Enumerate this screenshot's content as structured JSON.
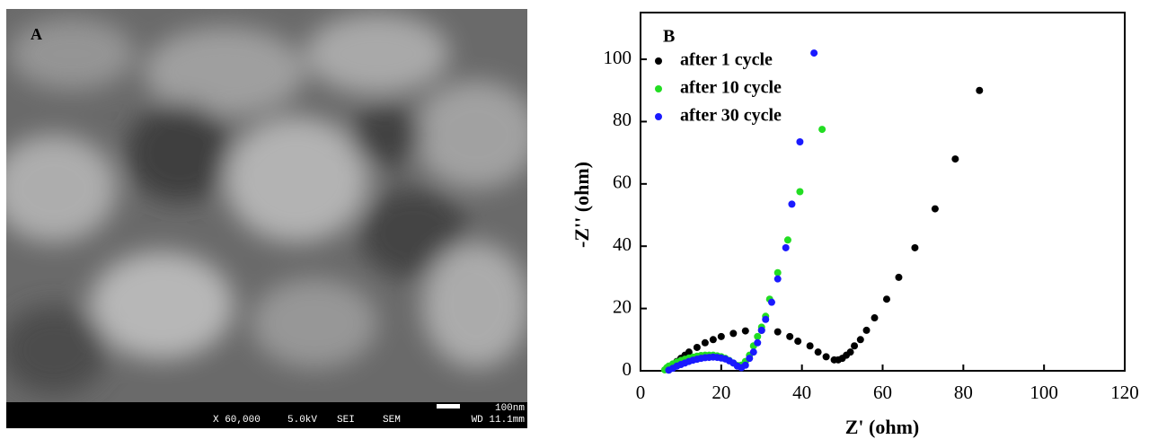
{
  "sem_image": {
    "label": "A",
    "scale_bar": "100nm",
    "info": [
      "X 60,000",
      "5.0kV",
      "SEI",
      "SEM",
      "WD 11.1mm"
    ]
  },
  "chart_data": {
    "type": "scatter",
    "label": "B",
    "xlabel": "Z' (ohm)",
    "ylabel": "-Z'' (ohm)",
    "xlim": [
      0,
      120
    ],
    "ylim": [
      0,
      115
    ],
    "xticks": [
      0,
      20,
      40,
      60,
      80,
      100,
      120
    ],
    "yticks": [
      0,
      20,
      40,
      60,
      80,
      100
    ],
    "legend": "top-left",
    "series": [
      {
        "name": "after 1 cycle",
        "color": "#000000",
        "x": [
          7,
          8,
          9,
          10,
          11,
          12,
          14,
          16,
          18,
          20,
          23,
          26,
          30,
          34,
          37,
          39,
          42,
          44,
          46,
          48,
          49,
          50,
          51,
          52,
          53,
          54.5,
          56,
          58,
          61,
          64,
          68,
          73,
          78,
          84
        ],
        "values": [
          1,
          2,
          3,
          4,
          5,
          6,
          7.5,
          9,
          10,
          11,
          12,
          12.8,
          13,
          12.5,
          11,
          9.5,
          8,
          6,
          4.5,
          3.5,
          3.5,
          4,
          5,
          6,
          8,
          10,
          13,
          17,
          23,
          30,
          39.5,
          52,
          68,
          90
        ]
      },
      {
        "name": "after 10 cycle",
        "color": "#22dd22",
        "x": [
          6,
          6.5,
          7,
          8,
          9,
          10,
          11,
          12,
          13,
          14,
          15,
          16,
          17,
          18,
          19,
          20,
          21,
          22,
          23,
          24,
          25,
          26,
          27,
          28,
          29,
          30,
          31,
          32,
          34,
          36.5,
          39.5,
          45
        ],
        "values": [
          0.3,
          1,
          1.5,
          2.2,
          2.8,
          3.3,
          3.7,
          4.1,
          4.4,
          4.7,
          4.9,
          5,
          5,
          5,
          4.8,
          4.5,
          4,
          3.3,
          2.5,
          1.7,
          1.8,
          3,
          5,
          8,
          11,
          14,
          17.5,
          23,
          31.5,
          42,
          57.5,
          77.5
        ]
      },
      {
        "name": "after 30 cycle",
        "color": "#1a1aff",
        "x": [
          7,
          8,
          9,
          10,
          11,
          12,
          13,
          14,
          15,
          16,
          17,
          18,
          19,
          20,
          21,
          22,
          23,
          24,
          25,
          26,
          27,
          28,
          29,
          30,
          31,
          32.5,
          34,
          36,
          37.5,
          39.5,
          43
        ],
        "values": [
          0.2,
          0.8,
          1.5,
          2,
          2.5,
          3,
          3.4,
          3.7,
          4,
          4.2,
          4.3,
          4.4,
          4.3,
          4.1,
          3.8,
          3.2,
          2.5,
          1.5,
          1,
          1.8,
          4,
          6,
          9,
          13,
          16.5,
          22,
          29.5,
          39.5,
          53.5,
          73.5,
          102
        ]
      }
    ]
  }
}
